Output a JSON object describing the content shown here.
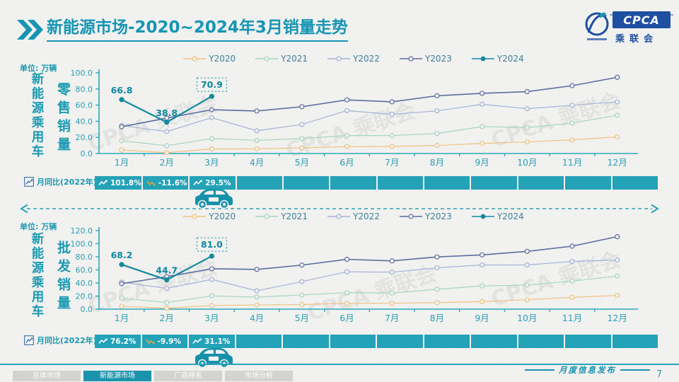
{
  "header": {
    "title": "新能源市场-2020~2024年3月销量走势",
    "logo": {
      "brand": "CPCA",
      "brand_cn": "乘联会"
    }
  },
  "watermark": "CPCA 乘联会",
  "divider": {
    "style": "dashed-double-arrow"
  },
  "chart_data": [
    {
      "type": "line",
      "unit_label": "单位: 万辆",
      "side_label": "新能源乘用车",
      "measure_label": "零售销量",
      "categories": [
        "1月",
        "2月",
        "3月",
        "4月",
        "5月",
        "6月",
        "7月",
        "8月",
        "9月",
        "10月",
        "11月",
        "12月"
      ],
      "ylim": [
        0,
        100
      ],
      "ytick_step": 20,
      "legend_position": "top",
      "grid": false,
      "series": [
        {
          "name": "Y2020",
          "color": "#f0c27e",
          "marker": "open",
          "width": 1.2,
          "values": [
            4.3,
            1.1,
            5.6,
            5.8,
            7.0,
            8.5,
            8.8,
            10.0,
            12.5,
            14.4,
            16.9,
            20.6
          ]
        },
        {
          "name": "Y2021",
          "color": "#a6d4c4",
          "marker": "open",
          "width": 1.2,
          "values": [
            15.8,
            9.7,
            18.5,
            16.3,
            18.5,
            22.3,
            22.2,
            24.9,
            33.4,
            32.1,
            37.8,
            47.5
          ]
        },
        {
          "name": "Y2022",
          "color": "#a3b2d6",
          "marker": "open",
          "width": 1.2,
          "values": [
            34.7,
            27.2,
            44.5,
            28.2,
            36.0,
            53.2,
            48.6,
            52.9,
            61.1,
            55.6,
            59.8,
            64.0
          ]
        },
        {
          "name": "Y2023",
          "color": "#5b6da0",
          "marker": "open",
          "width": 1.6,
          "values": [
            33.2,
            43.9,
            54.3,
            52.7,
            58.0,
            66.5,
            64.1,
            71.6,
            74.6,
            76.7,
            84.1,
            94.5
          ]
        },
        {
          "name": "Y2024",
          "color": "#12899f",
          "marker": "filled",
          "width": 2.2,
          "values": [
            66.8,
            38.8,
            70.9
          ]
        }
      ],
      "annotations": [
        {
          "month_index": 0,
          "text": "66.8",
          "boxed": false
        },
        {
          "month_index": 1,
          "text": "38.8",
          "boxed": false
        },
        {
          "month_index": 2,
          "text": "70.9",
          "boxed": true
        }
      ],
      "mom": {
        "label": "月同比(2022年)",
        "values": [
          "101.8%",
          "-11.6%",
          "29.5%"
        ]
      }
    },
    {
      "type": "line",
      "unit_label": "单位: 万辆",
      "side_label": "新能源乘用车",
      "measure_label": "批发销量",
      "categories": [
        "1月",
        "2月",
        "3月",
        "4月",
        "5月",
        "6月",
        "7月",
        "8月",
        "9月",
        "10月",
        "11月",
        "12月"
      ],
      "ylim": [
        0,
        120
      ],
      "ytick_step": 20,
      "legend_position": "top",
      "grid": false,
      "series": [
        {
          "name": "Y2020",
          "color": "#f0c27e",
          "marker": "open",
          "width": 1.2,
          "values": [
            4.4,
            1.5,
            5.6,
            6.4,
            7.0,
            8.9,
            9.0,
            10.0,
            11.6,
            14.4,
            18.0,
            21.0
          ]
        },
        {
          "name": "Y2021",
          "color": "#a6d4c4",
          "marker": "open",
          "width": 1.2,
          "values": [
            16.8,
            10.0,
            20.2,
            18.4,
            21.7,
            25.2,
            24.6,
            30.4,
            35.5,
            36.8,
            42.9,
            50.5
          ]
        },
        {
          "name": "Y2022",
          "color": "#a3b2d6",
          "marker": "open",
          "width": 1.2,
          "values": [
            41.2,
            31.7,
            45.5,
            28.0,
            42.1,
            57.1,
            56.4,
            63.2,
            67.5,
            67.6,
            72.8,
            75.0
          ]
        },
        {
          "name": "Y2023",
          "color": "#5b6da0",
          "marker": "open",
          "width": 1.6,
          "values": [
            38.9,
            49.6,
            61.7,
            60.7,
            67.3,
            76.1,
            73.7,
            79.8,
            82.9,
            88.3,
            96.2,
            110.8
          ]
        },
        {
          "name": "Y2024",
          "color": "#12899f",
          "marker": "filled",
          "width": 2.2,
          "values": [
            68.2,
            44.7,
            81.0
          ]
        }
      ],
      "annotations": [
        {
          "month_index": 0,
          "text": "68.2",
          "boxed": false
        },
        {
          "month_index": 1,
          "text": "44.7",
          "boxed": false
        },
        {
          "month_index": 2,
          "text": "81.0",
          "boxed": true
        }
      ],
      "mom": {
        "label": "月同比(2022年)",
        "values": [
          "76.2%",
          "-9.9%",
          "31.1%"
        ]
      }
    }
  ],
  "footer": {
    "tabs": [
      {
        "label": "总体市场",
        "active": false
      },
      {
        "label": "新能源市场",
        "active": true
      },
      {
        "label": "厂商排名",
        "active": false
      },
      {
        "label": "市场分析",
        "active": false
      }
    ],
    "publish_label": "月度信息发布",
    "page_number": "7"
  }
}
